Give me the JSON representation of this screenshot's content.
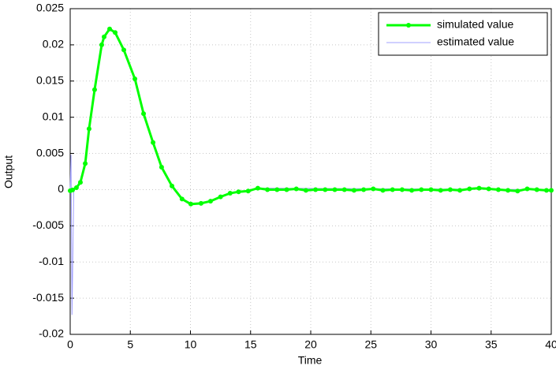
{
  "chart_data": {
    "type": "line",
    "x_label": "Time",
    "y_label": "Output",
    "xlim": [
      0,
      40
    ],
    "ylim": [
      -0.02,
      0.025
    ],
    "xticks": [
      0,
      5,
      10,
      15,
      20,
      25,
      30,
      35,
      40
    ],
    "yticks": [
      -0.02,
      -0.015,
      -0.01,
      -0.005,
      0,
      0.005,
      0.01,
      0.015,
      0.02,
      0.025
    ],
    "grid": true,
    "legend": "upper right",
    "series": [
      {
        "name": "simulated value",
        "color": "#00ff00",
        "markers": true,
        "x": [
          0,
          0.2,
          0.52,
          0.85,
          1.25,
          1.57,
          2.03,
          2.62,
          2.82,
          3.28,
          3.74,
          4.46,
          5.38,
          6.1,
          6.89,
          7.6,
          8.46,
          9.3,
          10.03,
          10.88,
          11.67,
          12.5,
          13.3,
          14.0,
          14.8,
          15.6,
          16.4,
          17.2,
          18.0,
          18.8,
          19.6,
          20.4,
          21.2,
          22.0,
          22.8,
          23.6,
          24.4,
          25.2,
          26.0,
          26.8,
          27.6,
          28.4,
          29.2,
          30.0,
          30.8,
          31.6,
          32.4,
          33.2,
          34.0,
          34.8,
          35.6,
          36.4,
          37.2,
          38.0,
          38.8,
          39.6,
          40.0
        ],
        "values": [
          -0.00016,
          -5e-05,
          0.00027,
          0.001,
          0.0036,
          0.0084,
          0.0138,
          0.02,
          0.0211,
          0.0222,
          0.0217,
          0.0193,
          0.0153,
          0.0105,
          0.0065,
          0.0031,
          0.0005,
          -0.0013,
          -0.002,
          -0.0019,
          -0.0016,
          -0.001,
          -0.0005,
          -0.0003,
          -0.0002,
          0.0002,
          0.0,
          0.0,
          0.0,
          0.0001,
          -0.0001,
          0.0,
          0.0,
          0.0,
          0.0,
          -0.0001,
          0.0,
          0.0001,
          -0.0001,
          0.0,
          0.0,
          -0.0001,
          0.0,
          0.0,
          -0.0001,
          0.0,
          -0.0001,
          0.0001,
          0.0002,
          0.0001,
          0.0,
          -0.0001,
          -0.0002,
          0.0001,
          0.0,
          -0.0001,
          -0.0001
        ]
      },
      {
        "name": "estimated value",
        "color": "#a0a0ff",
        "markers": false,
        "x": [
          0,
          0.07,
          0.15,
          0.3,
          0.52,
          0.85,
          1.25,
          1.57,
          2.03,
          2.62,
          2.82,
          3.28,
          3.74,
          4.46,
          5.38,
          6.1,
          6.89,
          7.6,
          8.46,
          9.3,
          10.03,
          10.88,
          11.67,
          12.5,
          13.3,
          14.0,
          14.8,
          15.6,
          40.0
        ],
        "values": [
          0,
          0.0048,
          -0.0173,
          0.0,
          0.00027,
          0.001,
          0.0036,
          0.0084,
          0.0138,
          0.02,
          0.0211,
          0.0222,
          0.0217,
          0.0193,
          0.0153,
          0.0105,
          0.0065,
          0.0031,
          0.0005,
          -0.0013,
          -0.002,
          -0.0019,
          -0.0016,
          -0.001,
          -0.0005,
          -0.0003,
          -0.0002,
          0.0002,
          0.0
        ]
      }
    ]
  }
}
